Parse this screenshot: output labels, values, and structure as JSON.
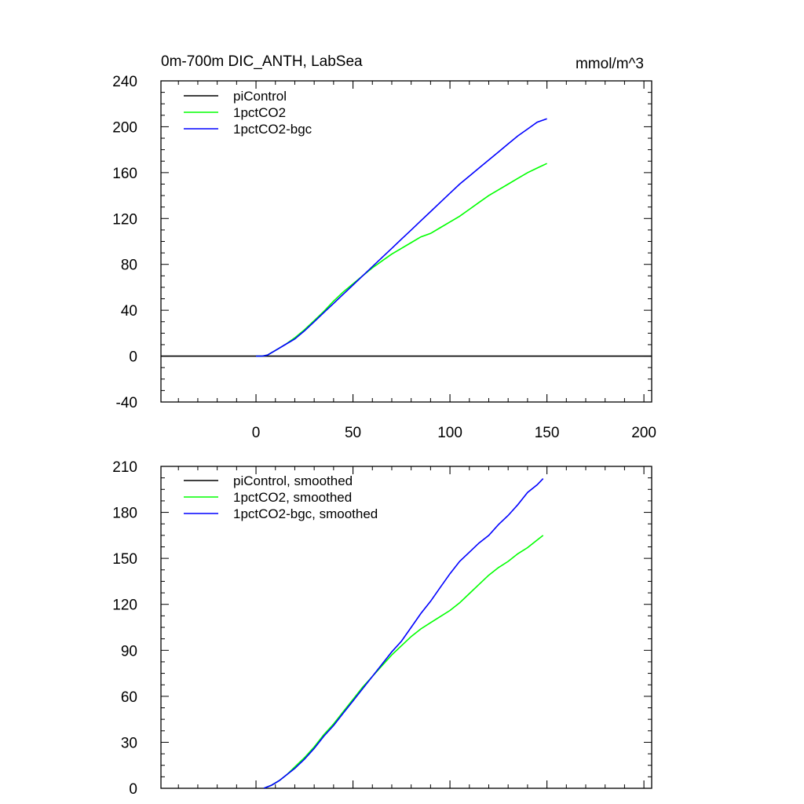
{
  "figure": {
    "left_title": "0m-700m DIC_ANTH, LabSea",
    "right_title": "mmol/m^3"
  },
  "chart_data": [
    {
      "type": "line",
      "xlim": [
        -49,
        204
      ],
      "ylim": [
        -40,
        240
      ],
      "x_ticks": [
        "0",
        "50",
        "100",
        "150",
        "200"
      ],
      "y_ticks": [
        "240",
        "200",
        "160",
        "120",
        "80",
        "40",
        "0",
        "-40"
      ],
      "legend_position": "top-left",
      "series": [
        {
          "name": "piControl",
          "color": "#000000",
          "x": [
            -49,
            204
          ],
          "y": [
            0,
            0
          ]
        },
        {
          "name": "1pctCO2",
          "color": "#00ff00",
          "x": [
            0,
            3,
            6,
            10,
            15,
            20,
            25,
            30,
            35,
            40,
            45,
            50,
            55,
            60,
            65,
            70,
            75,
            80,
            85,
            90,
            95,
            100,
            105,
            110,
            115,
            120,
            125,
            130,
            135,
            140,
            145,
            150
          ],
          "y": [
            0,
            0,
            1,
            5,
            10,
            16,
            23,
            31,
            39,
            48,
            56,
            63,
            70,
            77,
            83,
            89,
            94,
            99,
            104,
            107,
            112,
            117,
            122,
            128,
            134,
            140,
            145,
            150,
            155,
            160,
            164,
            168
          ]
        },
        {
          "name": "1pctCO2-bgc",
          "color": "#0000ff",
          "x": [
            0,
            3,
            6,
            10,
            15,
            20,
            25,
            30,
            35,
            40,
            45,
            50,
            55,
            60,
            65,
            70,
            75,
            80,
            85,
            90,
            95,
            100,
            105,
            110,
            115,
            120,
            125,
            130,
            135,
            140,
            145,
            150
          ],
          "y": [
            0,
            0,
            1,
            5,
            10,
            15,
            22,
            30,
            38,
            46,
            54,
            62,
            70,
            78,
            86,
            94,
            102,
            110,
            118,
            126,
            134,
            142,
            150,
            157,
            164,
            171,
            178,
            185,
            192,
            198,
            204,
            207
          ]
        }
      ]
    },
    {
      "type": "line",
      "xlim": [
        -49,
        204
      ],
      "ylim": [
        0,
        210
      ],
      "y_ticks": [
        "210",
        "180",
        "150",
        "120",
        "90",
        "60",
        "30",
        "0"
      ],
      "legend_position": "top-left",
      "series": [
        {
          "name": "piControl, smoothed",
          "color": "#000000",
          "x": [],
          "y": []
        },
        {
          "name": "1pctCO2, smoothed",
          "color": "#00ff00",
          "x": [
            4,
            8,
            12,
            16,
            20,
            25,
            30,
            35,
            40,
            45,
            50,
            55,
            60,
            65,
            70,
            75,
            80,
            85,
            90,
            95,
            100,
            105,
            110,
            115,
            120,
            125,
            130,
            135,
            140,
            145,
            148
          ],
          "y": [
            0,
            2,
            5,
            9,
            14,
            20,
            27,
            35,
            42,
            50,
            58,
            66,
            73,
            80,
            87,
            93,
            99,
            104,
            108,
            112,
            116,
            121,
            127,
            133,
            139,
            144,
            148,
            153,
            157,
            162,
            165
          ]
        },
        {
          "name": "1pctCO2-bgc, smoothed",
          "color": "#0000ff",
          "x": [
            4,
            8,
            12,
            16,
            20,
            25,
            30,
            35,
            40,
            45,
            50,
            55,
            60,
            65,
            70,
            75,
            80,
            85,
            90,
            95,
            100,
            105,
            110,
            115,
            120,
            125,
            130,
            135,
            140,
            145,
            148
          ],
          "y": [
            0,
            2,
            5,
            9,
            13,
            19,
            26,
            34,
            41,
            49,
            57,
            65,
            73,
            81,
            89,
            96,
            105,
            114,
            122,
            131,
            140,
            148,
            154,
            160,
            165,
            172,
            178,
            185,
            193,
            198,
            202
          ]
        }
      ]
    }
  ]
}
